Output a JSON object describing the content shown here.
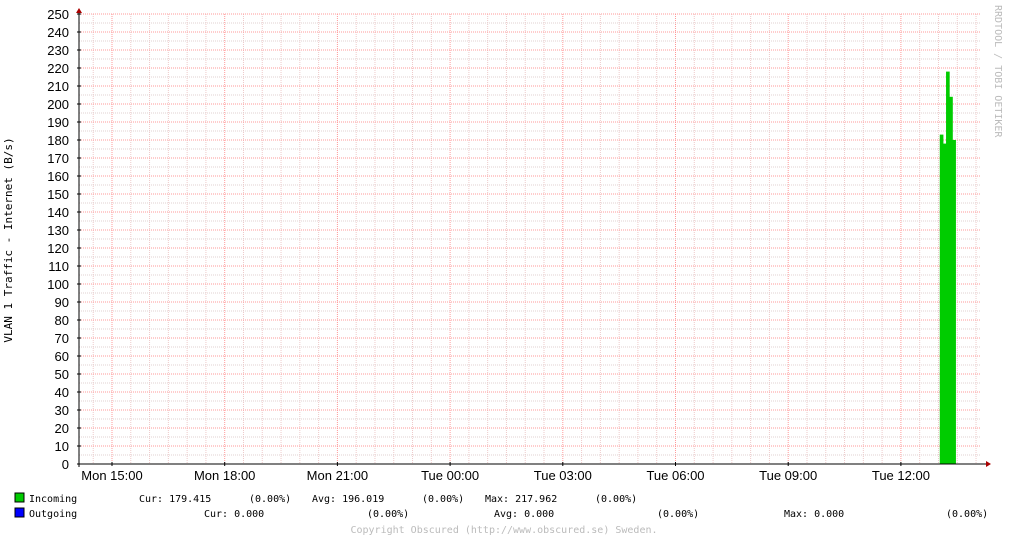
{
  "chart_data": {
    "type": "bar",
    "ylabel": "VLAN 1 Traffic - Internet (B/s)",
    "watermark": "RRDTOOL / TOBI OETIKER",
    "ylim": [
      0,
      250
    ],
    "y_ticks": [
      0,
      10,
      20,
      30,
      40,
      50,
      60,
      70,
      80,
      90,
      100,
      110,
      120,
      130,
      140,
      150,
      160,
      170,
      180,
      190,
      200,
      210,
      220,
      230,
      240,
      250
    ],
    "x_tick_labels": [
      "Mon 15:00",
      "Mon 18:00",
      "Mon 21:00",
      "Tue 00:00",
      "Tue 03:00",
      "Tue 06:00",
      "Tue 09:00",
      "Tue 12:00"
    ],
    "grid": true,
    "legend_position": "bottom-left",
    "series": [
      {
        "name": "Incoming",
        "color": "#00cc00",
        "points": [
          {
            "x": "Tue 13:05",
            "y": 183
          },
          {
            "x": "Tue 13:10",
            "y": 178
          },
          {
            "x": "Tue 13:15",
            "y": 218
          },
          {
            "x": "Tue 13:20",
            "y": 204
          },
          {
            "x": "Tue 13:25",
            "y": 180
          }
        ],
        "stats": {
          "cur": "Cur: 179.415",
          "cur_pct": "(0.00%)",
          "avg": "Avg: 196.019",
          "avg_pct": "(0.00%)",
          "max": "Max: 217.962",
          "max_pct": "(0.00%)"
        }
      },
      {
        "name": "Outgoing",
        "color": "#0000ff",
        "points": [],
        "stats": {
          "cur": "Cur: 0.000",
          "cur_pct": "(0.00%)",
          "avg": "Avg: 0.000",
          "avg_pct": "(0.00%)",
          "max": "Max: 0.000",
          "max_pct": "(0.00%)"
        }
      }
    ],
    "copyright": "Copyright Obscured (http://www.obscured.se) Sweden."
  }
}
